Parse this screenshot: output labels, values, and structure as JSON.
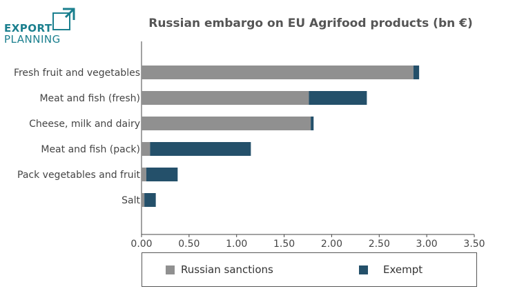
{
  "logo": {
    "line1": "EXPORT",
    "line2": "PLANNING",
    "color": "#1a7f8e"
  },
  "chart_data": {
    "type": "bar",
    "orientation": "horizontal",
    "stacked": true,
    "title": "Russian embargo on EU Agrifood products (bn €)",
    "xlabel": "",
    "ylabel": "",
    "xlim": [
      0,
      3.5
    ],
    "xticks": [
      "0.00",
      "0.50",
      "1.00",
      "1.50",
      "2.00",
      "2.50",
      "3.00",
      "3.50"
    ],
    "grid": false,
    "legend_position": "bottom",
    "categories": [
      "Fresh fruit and vegetables",
      "Meat and fish (fresh)",
      "Cheese, milk and dairy",
      "Meat and fish (pack)",
      "Pack vegetables and fruit",
      "Salt"
    ],
    "series": [
      {
        "name": "Russian sanctions",
        "color": "#909090",
        "values": [
          2.86,
          1.76,
          1.78,
          0.09,
          0.05,
          0.03
        ]
      },
      {
        "name": "Exempt",
        "color": "#24506a",
        "values": [
          0.06,
          0.61,
          0.03,
          1.06,
          0.33,
          0.12
        ]
      }
    ]
  }
}
